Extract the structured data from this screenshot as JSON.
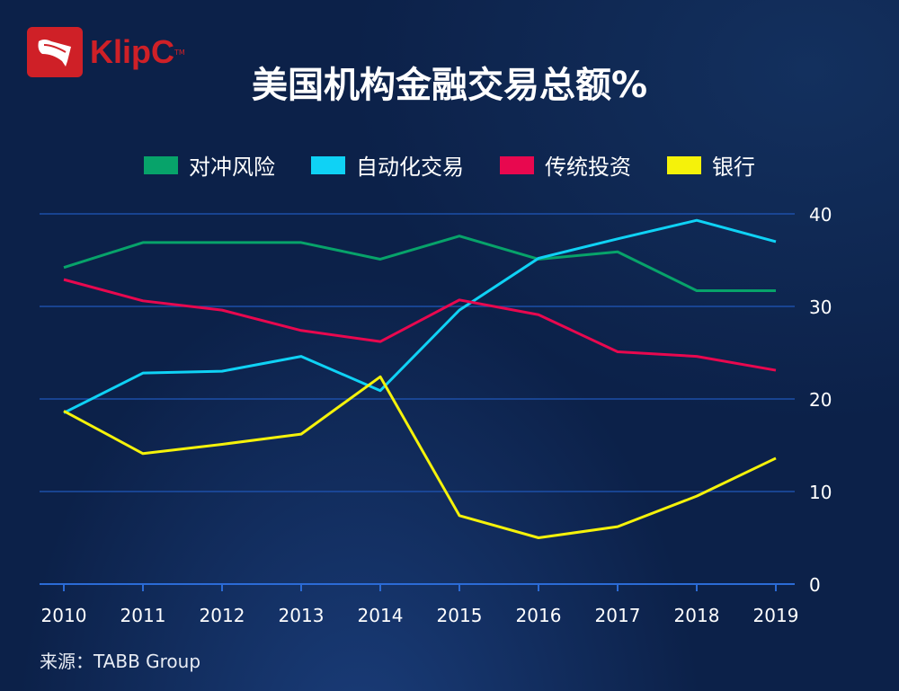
{
  "logo": {
    "text": "KlipC",
    "tm": "TM"
  },
  "source": "来源：TABB Group",
  "colors": {
    "bg": "#0c2149",
    "grid": "#1d4fa8",
    "axis": "#2b6bd6"
  },
  "chart_data": {
    "type": "line",
    "title": "美国机构金融交易总额%",
    "xlabel": "",
    "ylabel": "",
    "categories": [
      "2010",
      "2011",
      "2012",
      "2013",
      "2014",
      "2015",
      "2016",
      "2017",
      "2018",
      "2019"
    ],
    "ylim": [
      0,
      40
    ],
    "yticks": [
      "0",
      "10",
      "20",
      "30",
      "40"
    ],
    "grid": true,
    "legend_position": "top",
    "series": [
      {
        "name": "对冲风险",
        "color": "#07a36a",
        "values": [
          34.2,
          36.9,
          36.9,
          36.9,
          35.1,
          37.6,
          35.1,
          35.9,
          31.7,
          31.7
        ]
      },
      {
        "name": "自动化交易",
        "color": "#0fd2f5",
        "values": [
          18.5,
          22.8,
          23.0,
          24.6,
          20.9,
          29.6,
          35.2,
          37.3,
          39.3,
          37.0
        ]
      },
      {
        "name": "传统投资",
        "color": "#e8084f",
        "values": [
          32.9,
          30.6,
          29.6,
          27.4,
          26.2,
          30.7,
          29.1,
          25.1,
          24.6,
          23.1
        ]
      },
      {
        "name": "银行",
        "color": "#f5f20a",
        "values": [
          18.7,
          14.1,
          15.1,
          16.2,
          22.4,
          7.4,
          5.0,
          6.2,
          9.5,
          13.6
        ]
      }
    ]
  }
}
